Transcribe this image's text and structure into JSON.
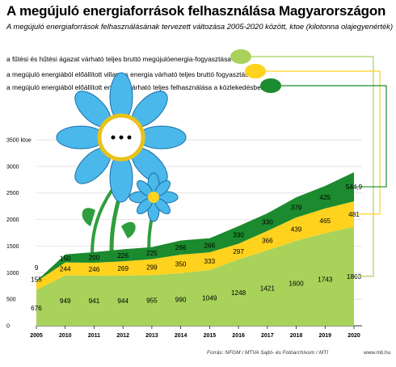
{
  "title": "A megújuló energiaforrások felhasználása Magyarországon",
  "subtitle": "A megújuló energiaforrások felhasználásának tervezett változása 2005-2020 között, ktoe (kilotonna olajegyenérték)",
  "source": "Forrás: NFGM / MTVA Sajtó- és Fotóarchívum / MTI",
  "website": "www.mti.hu",
  "colors": {
    "heating": "#a8d25a",
    "electricity": "#ffd21e",
    "transport": "#1c8a2e"
  },
  "chart_data": {
    "type": "area",
    "stacked": true,
    "x": [
      "2005",
      "2010",
      "2011",
      "2012",
      "2013",
      "2014",
      "2015",
      "2016",
      "2017",
      "2018",
      "2019",
      "2020"
    ],
    "ylim": [
      0,
      3500
    ],
    "yticks": [
      0,
      500,
      1000,
      1500,
      2000,
      2500,
      3000,
      3500
    ],
    "yunit": "ktoe",
    "legend_position": "top-left",
    "series": [
      {
        "name": "a fűtési és hűtési ágazat várható teljes bruttó megújulóenergia-fogyasztása",
        "color": "#a8d25a",
        "values": [
          676,
          949,
          941,
          944,
          955,
          990,
          1049,
          1248,
          1421,
          1600,
          1743,
          1863
        ],
        "labels": [
          "676",
          "949",
          "941",
          "944",
          "955",
          "990",
          "1049",
          "1248",
          "1421",
          "1600",
          "1743",
          "1863"
        ]
      },
      {
        "name": "a megújuló energiából előállított villamos energia várható teljes bruttó fogyasztása",
        "color": "#ffd21e",
        "values": [
          155,
          244,
          246,
          269,
          299,
          350,
          333,
          297,
          366,
          439,
          465,
          481
        ],
        "labels": [
          "155",
          "244",
          "246",
          "269",
          "299",
          "350",
          "333",
          "297",
          "366",
          "439",
          "465",
          "481"
        ]
      },
      {
        "name": "a megújuló energiából előállított energia várható teljes felhasználása a közlekedésben",
        "color": "#1c8a2e",
        "values": [
          9,
          150,
          200,
          226,
          225,
          266,
          266,
          330,
          330,
          379,
          425,
          544.9
        ],
        "labels": [
          "9",
          "150",
          "200",
          "226",
          "225",
          "266",
          "266",
          "330",
          "330",
          "379",
          "425",
          "544,9"
        ]
      }
    ]
  }
}
